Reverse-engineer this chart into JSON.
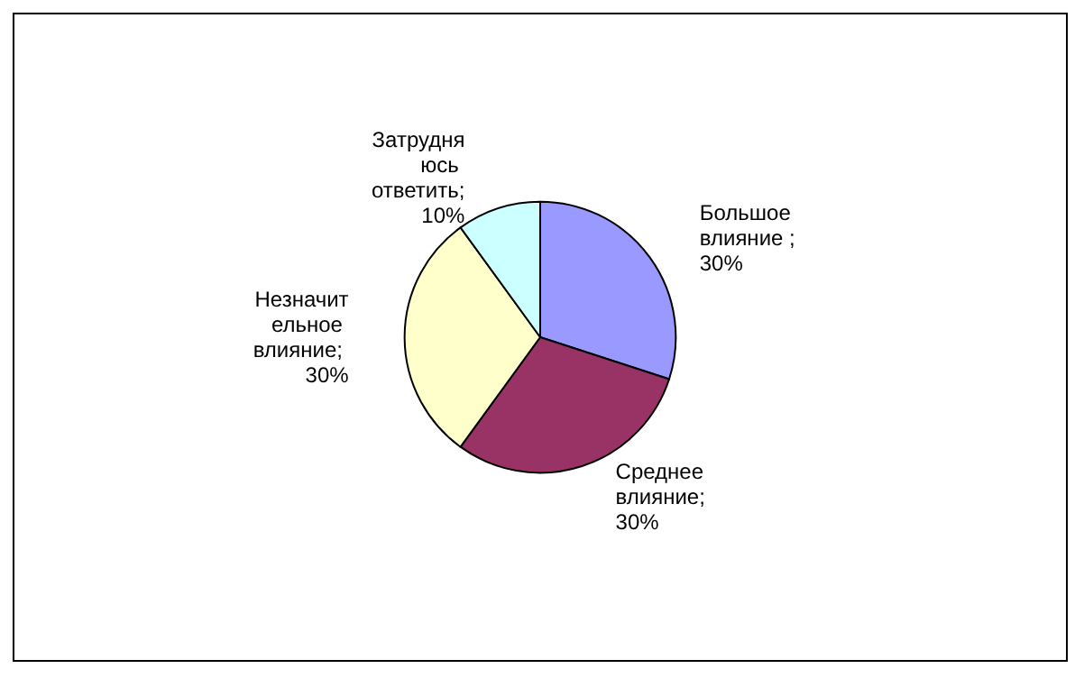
{
  "chart_data": {
    "type": "pie",
    "categories": [
      "Большое влияние",
      "Среднее влияние",
      "Незначительное влияние",
      "Затрудняюсь ответить"
    ],
    "values": [
      30,
      30,
      30,
      10
    ],
    "value_labels": [
      " ; 30%",
      "; 30%",
      "; 30%",
      "; 10%"
    ],
    "colors": [
      "#9999ff",
      "#993366",
      "#ffffcc",
      "#ccffff"
    ],
    "legend": false
  }
}
